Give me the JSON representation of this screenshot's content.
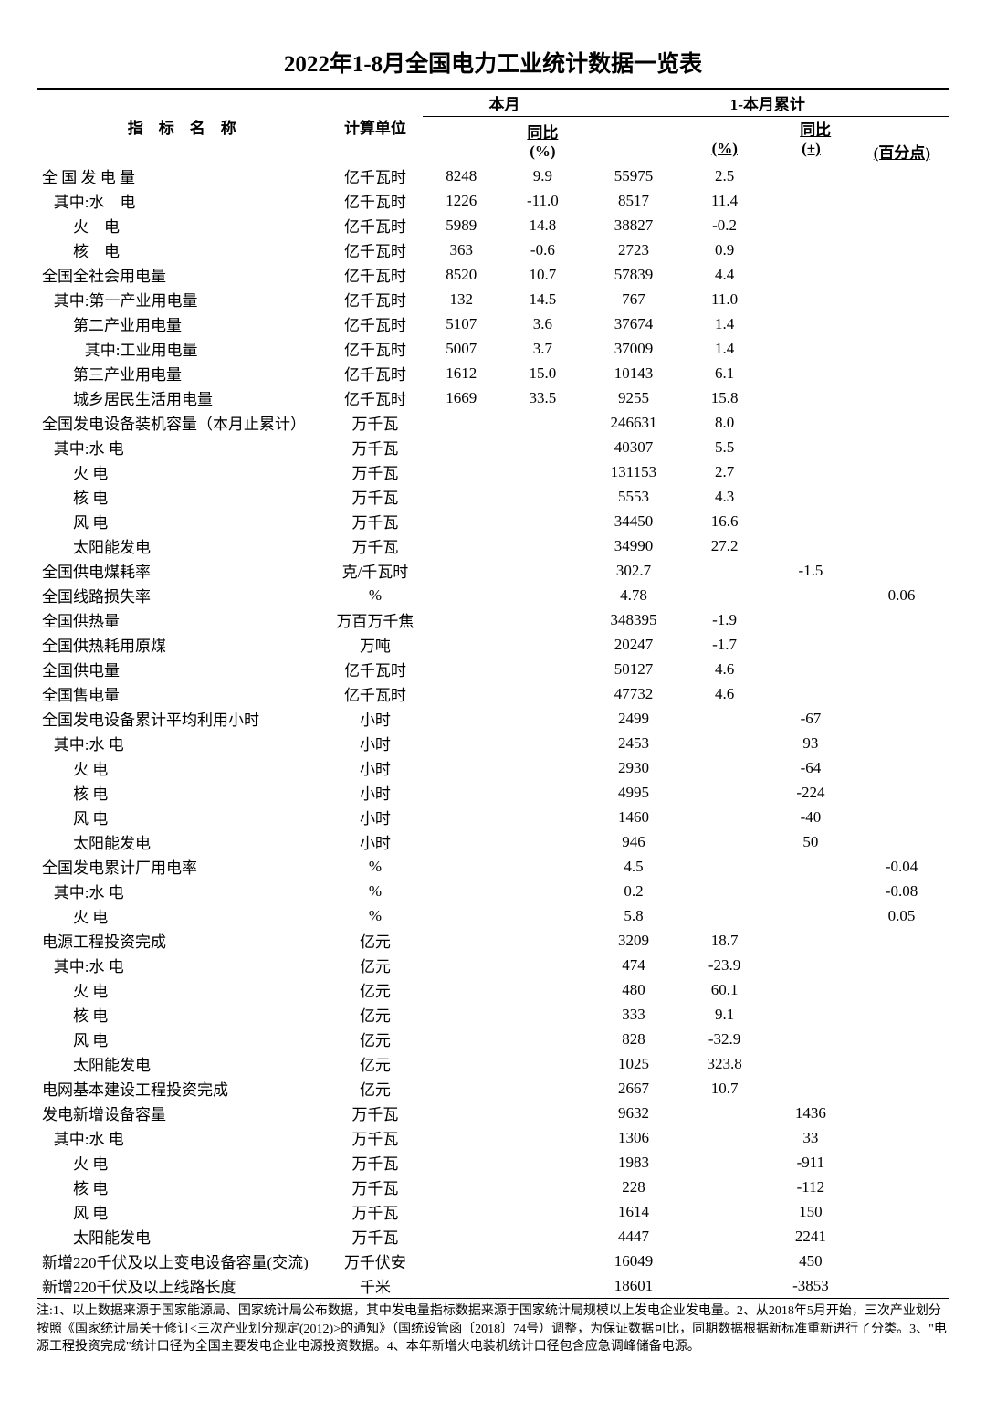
{
  "title": "2022年1-8月全国电力工业统计数据一览表",
  "header": {
    "indicator": "指　标　名　称",
    "unit": "计算单位",
    "this_month": "本月",
    "yoy": "同比",
    "pct": "(%)",
    "cumulative": "1-本月累计",
    "plus_minus": "(±)",
    "pct_point": "(百分点)"
  },
  "rows": [
    {
      "name": "全 国 发 电 量",
      "unit": "亿千瓦时",
      "m": "8248",
      "m_yoy": "9.9",
      "c": "55975",
      "c_pct": "2.5",
      "c_pm": "",
      "c_pp": ""
    },
    {
      "name": "   其中:水　电",
      "unit": "亿千瓦时",
      "m": "1226",
      "m_yoy": "-11.0",
      "c": "8517",
      "c_pct": "11.4",
      "c_pm": "",
      "c_pp": ""
    },
    {
      "name": "        火　电",
      "unit": "亿千瓦时",
      "m": "5989",
      "m_yoy": "14.8",
      "c": "38827",
      "c_pct": "-0.2",
      "c_pm": "",
      "c_pp": ""
    },
    {
      "name": "        核　电",
      "unit": "亿千瓦时",
      "m": "363",
      "m_yoy": "-0.6",
      "c": "2723",
      "c_pct": "0.9",
      "c_pm": "",
      "c_pp": ""
    },
    {
      "name": "全国全社会用电量",
      "unit": "亿千瓦时",
      "m": "8520",
      "m_yoy": "10.7",
      "c": "57839",
      "c_pct": "4.4",
      "c_pm": "",
      "c_pp": ""
    },
    {
      "name": "   其中:第一产业用电量",
      "unit": "亿千瓦时",
      "m": "132",
      "m_yoy": "14.5",
      "c": "767",
      "c_pct": "11.0",
      "c_pm": "",
      "c_pp": ""
    },
    {
      "name": "        第二产业用电量",
      "unit": "亿千瓦时",
      "m": "5107",
      "m_yoy": "3.6",
      "c": "37674",
      "c_pct": "1.4",
      "c_pm": "",
      "c_pp": ""
    },
    {
      "name": "           其中:工业用电量",
      "unit": "亿千瓦时",
      "m": "5007",
      "m_yoy": "3.7",
      "c": "37009",
      "c_pct": "1.4",
      "c_pm": "",
      "c_pp": ""
    },
    {
      "name": "        第三产业用电量",
      "unit": "亿千瓦时",
      "m": "1612",
      "m_yoy": "15.0",
      "c": "10143",
      "c_pct": "6.1",
      "c_pm": "",
      "c_pp": ""
    },
    {
      "name": "        城乡居民生活用电量",
      "unit": "亿千瓦时",
      "m": "1669",
      "m_yoy": "33.5",
      "c": "9255",
      "c_pct": "15.8",
      "c_pm": "",
      "c_pp": ""
    },
    {
      "name": "全国发电设备装机容量（本月止累计）",
      "unit": "万千瓦",
      "m": "",
      "m_yoy": "",
      "c": "246631",
      "c_pct": "8.0",
      "c_pm": "",
      "c_pp": ""
    },
    {
      "name": "   其中:水 电",
      "unit": "万千瓦",
      "m": "",
      "m_yoy": "",
      "c": "40307",
      "c_pct": "5.5",
      "c_pm": "",
      "c_pp": ""
    },
    {
      "name": "        火 电",
      "unit": "万千瓦",
      "m": "",
      "m_yoy": "",
      "c": "131153",
      "c_pct": "2.7",
      "c_pm": "",
      "c_pp": ""
    },
    {
      "name": "        核 电",
      "unit": "万千瓦",
      "m": "",
      "m_yoy": "",
      "c": "5553",
      "c_pct": "4.3",
      "c_pm": "",
      "c_pp": ""
    },
    {
      "name": "        风 电",
      "unit": "万千瓦",
      "m": "",
      "m_yoy": "",
      "c": "34450",
      "c_pct": "16.6",
      "c_pm": "",
      "c_pp": ""
    },
    {
      "name": "        太阳能发电",
      "unit": "万千瓦",
      "m": "",
      "m_yoy": "",
      "c": "34990",
      "c_pct": "27.2",
      "c_pm": "",
      "c_pp": ""
    },
    {
      "name": "全国供电煤耗率",
      "unit": "克/千瓦时",
      "m": "",
      "m_yoy": "",
      "c": "302.7",
      "c_pct": "",
      "c_pm": "-1.5",
      "c_pp": ""
    },
    {
      "name": "全国线路损失率",
      "unit": "%",
      "m": "",
      "m_yoy": "",
      "c": "4.78",
      "c_pct": "",
      "c_pm": "",
      "c_pp": "0.06"
    },
    {
      "name": "全国供热量",
      "unit": "万百万千焦",
      "m": "",
      "m_yoy": "",
      "c": "348395",
      "c_pct": "-1.9",
      "c_pm": "",
      "c_pp": ""
    },
    {
      "name": "全国供热耗用原煤",
      "unit": "万吨",
      "m": "",
      "m_yoy": "",
      "c": "20247",
      "c_pct": "-1.7",
      "c_pm": "",
      "c_pp": ""
    },
    {
      "name": "全国供电量",
      "unit": "亿千瓦时",
      "m": "",
      "m_yoy": "",
      "c": "50127",
      "c_pct": "4.6",
      "c_pm": "",
      "c_pp": ""
    },
    {
      "name": "全国售电量",
      "unit": "亿千瓦时",
      "m": "",
      "m_yoy": "",
      "c": "47732",
      "c_pct": "4.6",
      "c_pm": "",
      "c_pp": ""
    },
    {
      "name": "全国发电设备累计平均利用小时",
      "unit": "小时",
      "m": "",
      "m_yoy": "",
      "c": "2499",
      "c_pct": "",
      "c_pm": "-67",
      "c_pp": ""
    },
    {
      "name": "   其中:水 电",
      "unit": "小时",
      "m": "",
      "m_yoy": "",
      "c": "2453",
      "c_pct": "",
      "c_pm": "93",
      "c_pp": ""
    },
    {
      "name": "        火 电",
      "unit": "小时",
      "m": "",
      "m_yoy": "",
      "c": "2930",
      "c_pct": "",
      "c_pm": "-64",
      "c_pp": ""
    },
    {
      "name": "        核 电",
      "unit": "小时",
      "m": "",
      "m_yoy": "",
      "c": "4995",
      "c_pct": "",
      "c_pm": "-224",
      "c_pp": ""
    },
    {
      "name": "        风 电",
      "unit": "小时",
      "m": "",
      "m_yoy": "",
      "c": "1460",
      "c_pct": "",
      "c_pm": "-40",
      "c_pp": ""
    },
    {
      "name": "        太阳能发电",
      "unit": "小时",
      "m": "",
      "m_yoy": "",
      "c": "946",
      "c_pct": "",
      "c_pm": "50",
      "c_pp": ""
    },
    {
      "name": "全国发电累计厂用电率",
      "unit": "%",
      "m": "",
      "m_yoy": "",
      "c": "4.5",
      "c_pct": "",
      "c_pm": "",
      "c_pp": "-0.04"
    },
    {
      "name": "   其中:水 电",
      "unit": "%",
      "m": "",
      "m_yoy": "",
      "c": "0.2",
      "c_pct": "",
      "c_pm": "",
      "c_pp": "-0.08"
    },
    {
      "name": "        火 电",
      "unit": "%",
      "m": "",
      "m_yoy": "",
      "c": "5.8",
      "c_pct": "",
      "c_pm": "",
      "c_pp": "0.05"
    },
    {
      "name": "电源工程投资完成",
      "unit": "亿元",
      "m": "",
      "m_yoy": "",
      "c": "3209",
      "c_pct": "18.7",
      "c_pm": "",
      "c_pp": ""
    },
    {
      "name": "   其中:水 电",
      "unit": "亿元",
      "m": "",
      "m_yoy": "",
      "c": "474",
      "c_pct": "-23.9",
      "c_pm": "",
      "c_pp": ""
    },
    {
      "name": "        火 电",
      "unit": "亿元",
      "m": "",
      "m_yoy": "",
      "c": "480",
      "c_pct": "60.1",
      "c_pm": "",
      "c_pp": ""
    },
    {
      "name": "        核 电",
      "unit": "亿元",
      "m": "",
      "m_yoy": "",
      "c": "333",
      "c_pct": "9.1",
      "c_pm": "",
      "c_pp": ""
    },
    {
      "name": "        风 电",
      "unit": "亿元",
      "m": "",
      "m_yoy": "",
      "c": "828",
      "c_pct": "-32.9",
      "c_pm": "",
      "c_pp": ""
    },
    {
      "name": "        太阳能发电",
      "unit": "亿元",
      "m": "",
      "m_yoy": "",
      "c": "1025",
      "c_pct": "323.8",
      "c_pm": "",
      "c_pp": ""
    },
    {
      "name": "电网基本建设工程投资完成",
      "unit": "亿元",
      "m": "",
      "m_yoy": "",
      "c": "2667",
      "c_pct": "10.7",
      "c_pm": "",
      "c_pp": ""
    },
    {
      "name": "发电新增设备容量",
      "unit": "万千瓦",
      "m": "",
      "m_yoy": "",
      "c": "9632",
      "c_pct": "",
      "c_pm": "1436",
      "c_pp": ""
    },
    {
      "name": "   其中:水 电",
      "unit": "万千瓦",
      "m": "",
      "m_yoy": "",
      "c": "1306",
      "c_pct": "",
      "c_pm": "33",
      "c_pp": ""
    },
    {
      "name": "        火 电",
      "unit": "万千瓦",
      "m": "",
      "m_yoy": "",
      "c": "1983",
      "c_pct": "",
      "c_pm": "-911",
      "c_pp": ""
    },
    {
      "name": "        核 电",
      "unit": "万千瓦",
      "m": "",
      "m_yoy": "",
      "c": "228",
      "c_pct": "",
      "c_pm": "-112",
      "c_pp": ""
    },
    {
      "name": "        风 电",
      "unit": "万千瓦",
      "m": "",
      "m_yoy": "",
      "c": "1614",
      "c_pct": "",
      "c_pm": "150",
      "c_pp": ""
    },
    {
      "name": "        太阳能发电",
      "unit": "万千瓦",
      "m": "",
      "m_yoy": "",
      "c": "4447",
      "c_pct": "",
      "c_pm": "2241",
      "c_pp": ""
    },
    {
      "name": "新增220千伏及以上变电设备容量(交流)",
      "unit": "万千伏安",
      "m": "",
      "m_yoy": "",
      "c": "16049",
      "c_pct": "",
      "c_pm": "450",
      "c_pp": ""
    },
    {
      "name": "新增220千伏及以上线路长度",
      "unit": "千米",
      "m": "",
      "m_yoy": "",
      "c": "18601",
      "c_pct": "",
      "c_pm": "-3853",
      "c_pp": ""
    }
  ],
  "footnote": "注:1、以上数据来源于国家能源局、国家统计局公布数据，其中发电量指标数据来源于国家统计局规模以上发电企业发电量。2、从2018年5月开始，三次产业划分按照《国家统计局关于修订<三次产业划分规定(2012)>的通知》（国统设管函〔2018〕74号）调整，为保证数据可比，同期数据根据新标准重新进行了分类。3、\"电源工程投资完成\"统计口径为全国主要发电企业电源投资数据。4、本年新增火电装机统计口径包含应急调峰储备电源。"
}
